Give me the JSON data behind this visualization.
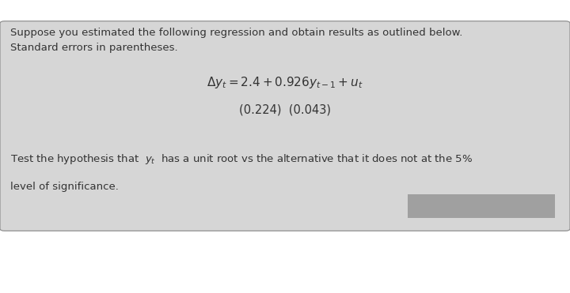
{
  "bg_color": "#ffffff",
  "box_facecolor": "#d6d6d6",
  "box_edgecolor": "#888888",
  "text_color": "#333333",
  "line1": "Suppose you estimated the following regression and obtain results as outlined below.",
  "line2": "Standard errors in parentheses.",
  "eq_main": "$\\Delta y_t = 2.4 + 0.926y_{t-1} + u_t$",
  "std_errors": "(0.224)  (0.043)",
  "q_line1": "Test the hypothesis that  $y_t$  has a unit root vs the alternative that it does not at the 5%",
  "q_line2": "level of significance.",
  "redact_color": "#a0a0a0",
  "fig_width": 7.2,
  "fig_height": 3.71,
  "dpi": 100
}
